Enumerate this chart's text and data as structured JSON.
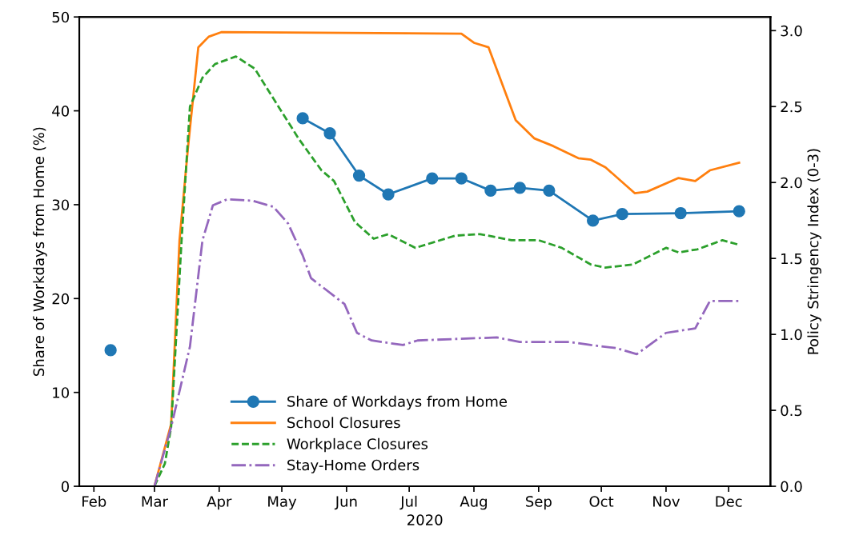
{
  "chart_data": {
    "type": "line",
    "xlabel": "2020",
    "ylabel": "Share of Workdays from Home (%)",
    "y2label": "Policy Stringency Index (0-3)",
    "xlim": [
      "2020-01-25",
      "2020-12-21"
    ],
    "xticks": [
      {
        "value": "2020-02-01",
        "label": "Feb"
      },
      {
        "value": "2020-03-01",
        "label": "Mar"
      },
      {
        "value": "2020-04-01",
        "label": "Apr"
      },
      {
        "value": "2020-05-01",
        "label": "May"
      },
      {
        "value": "2020-06-01",
        "label": "Jun"
      },
      {
        "value": "2020-07-01",
        "label": "Jul"
      },
      {
        "value": "2020-08-01",
        "label": "Aug"
      },
      {
        "value": "2020-09-01",
        "label": "Sep"
      },
      {
        "value": "2020-10-01",
        "label": "Oct"
      },
      {
        "value": "2020-11-01",
        "label": "Nov"
      },
      {
        "value": "2020-12-01",
        "label": "Dec"
      }
    ],
    "ylim": [
      0,
      50
    ],
    "yticks": [
      0,
      10,
      20,
      30,
      40,
      50
    ],
    "y2lim": [
      0,
      3.09
    ],
    "y2ticks": [
      {
        "value": 0,
        "label": "0.0"
      },
      {
        "value": 0.5,
        "label": "0.5"
      },
      {
        "value": 1,
        "label": "1.0"
      },
      {
        "value": 1.5,
        "label": "1.5"
      },
      {
        "value": 2,
        "label": "2.0"
      },
      {
        "value": 2.5,
        "label": "2.5"
      },
      {
        "value": 3,
        "label": "3.0"
      }
    ],
    "grid": false,
    "legend": "bottom",
    "series": [
      {
        "name": "Share of Workdays from Home",
        "color": "#1f77b4",
        "marker": "circle",
        "line_style": "solid",
        "x": [
          "2020-02-09",
          "2020-03-25",
          "2020-05-11",
          "2020-05-24",
          "2020-06-07",
          "2020-06-21",
          "2020-07-12",
          "2020-07-26",
          "2020-08-09",
          "2020-08-23",
          "2020-09-06",
          "2020-09-27",
          "2020-10-11",
          "2020-11-08",
          "2020-12-06"
        ],
        "values": [
          14.5,
          null,
          39.2,
          37.6,
          33.1,
          31.1,
          32.8,
          32.8,
          31.5,
          31.8,
          31.5,
          28.3,
          29.0,
          29.1,
          29.3
        ]
      },
      {
        "name": "School Closures",
        "color": "#ff7f0e",
        "axis": "y2",
        "marker": "none",
        "line_style": "solid",
        "x": [
          "2020-03-01",
          "2020-03-09",
          "2020-03-13",
          "2020-03-17",
          "2020-03-22",
          "2020-03-27",
          "2020-04-02",
          "2020-07-26",
          "2020-08-01",
          "2020-08-08",
          "2020-08-21",
          "2020-08-30",
          "2020-09-08",
          "2020-09-20",
          "2020-09-26",
          "2020-10-03",
          "2020-10-17",
          "2020-10-23",
          "2020-11-07",
          "2020-11-15",
          "2020-11-22",
          "2020-12-06"
        ],
        "values": [
          0,
          0.41,
          1.62,
          2.22,
          2.89,
          2.96,
          2.99,
          2.98,
          2.92,
          2.89,
          2.41,
          2.29,
          2.24,
          2.16,
          2.15,
          2.1,
          1.93,
          1.94,
          2.03,
          2.01,
          2.08,
          2.13
        ]
      },
      {
        "name": "Workplace Closures",
        "color": "#2ca02c",
        "axis": "y2",
        "marker": "none",
        "line_style": "dashed",
        "x": [
          "2020-03-01",
          "2020-03-06",
          "2020-03-09",
          "2020-03-14",
          "2020-03-18",
          "2020-03-24",
          "2020-03-30",
          "2020-04-09",
          "2020-04-18",
          "2020-04-28",
          "2020-05-09",
          "2020-05-20",
          "2020-05-26",
          "2020-06-05",
          "2020-06-14",
          "2020-06-21",
          "2020-07-04",
          "2020-07-23",
          "2020-08-04",
          "2020-08-19",
          "2020-09-01",
          "2020-09-12",
          "2020-09-26",
          "2020-10-03",
          "2020-10-16",
          "2020-11-01",
          "2020-11-07",
          "2020-11-16",
          "2020-11-28",
          "2020-12-06"
        ],
        "values": [
          0,
          0.15,
          0.39,
          1.62,
          2.5,
          2.69,
          2.78,
          2.83,
          2.75,
          2.53,
          2.29,
          2.08,
          2.01,
          1.74,
          1.63,
          1.66,
          1.57,
          1.65,
          1.66,
          1.62,
          1.62,
          1.57,
          1.46,
          1.44,
          1.46,
          1.57,
          1.54,
          1.56,
          1.62,
          1.59
        ]
      },
      {
        "name": "Stay-Home Orders",
        "color": "#9467bd",
        "axis": "y2",
        "marker": "none",
        "line_style": "dashdot",
        "x": [
          "2020-03-01",
          "2020-03-09",
          "2020-03-18",
          "2020-03-24",
          "2020-03-29",
          "2020-04-05",
          "2020-04-17",
          "2020-04-27",
          "2020-05-04",
          "2020-05-11",
          "2020-05-15",
          "2020-05-31",
          "2020-06-06",
          "2020-06-13",
          "2020-06-28",
          "2020-07-05",
          "2020-07-23",
          "2020-08-12",
          "2020-08-23",
          "2020-09-16",
          "2020-09-26",
          "2020-10-08",
          "2020-10-18",
          "2020-11-01",
          "2020-11-15",
          "2020-11-22",
          "2020-11-29",
          "2020-12-06"
        ],
        "values": [
          0,
          0.39,
          0.92,
          1.62,
          1.85,
          1.89,
          1.88,
          1.84,
          1.73,
          1.52,
          1.37,
          1.2,
          1.01,
          0.96,
          0.93,
          0.96,
          0.97,
          0.98,
          0.95,
          0.95,
          0.93,
          0.91,
          0.87,
          1.01,
          1.04,
          1.22,
          1.22,
          1.22
        ]
      }
    ]
  }
}
